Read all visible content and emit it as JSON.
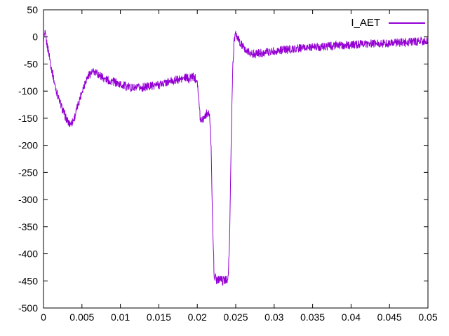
{
  "chart": {
    "background": "#ffffff",
    "axis_color": "#000000",
    "tick_font_size": 14
  },
  "chart_data": {
    "type": "line",
    "title": "",
    "xlabel": "",
    "ylabel": "",
    "xlim": [
      0,
      0.05
    ],
    "ylim": [
      -500,
      50
    ],
    "grid": false,
    "legend_position": "top-right",
    "xticks": [
      0,
      0.005,
      0.01,
      0.015,
      0.02,
      0.025,
      0.03,
      0.035,
      0.04,
      0.045,
      0.05
    ],
    "xtick_labels": [
      "0",
      "0.005",
      "0.01",
      "0.015",
      "0.02",
      "0.025",
      "0.03",
      "0.035",
      "0.04",
      "0.045",
      "0.05"
    ],
    "yticks": [
      50,
      0,
      -50,
      -100,
      -150,
      -200,
      -250,
      -300,
      -350,
      -400,
      -450,
      -500
    ],
    "ytick_labels": [
      "50",
      "0",
      "-50",
      "-100",
      "-150",
      "-200",
      "-250",
      "-300",
      "-350",
      "-400",
      "-450",
      "-500"
    ],
    "series": [
      {
        "name": "I_AET",
        "color": "#9400d3",
        "noise_amplitude": 8,
        "points": [
          [
            0,
            -3
          ],
          [
            0.0002,
            5
          ],
          [
            0.0004,
            -10
          ],
          [
            0.0007,
            -30
          ],
          [
            0.001,
            -55
          ],
          [
            0.0015,
            -90
          ],
          [
            0.002,
            -115
          ],
          [
            0.0025,
            -135
          ],
          [
            0.003,
            -152
          ],
          [
            0.0033,
            -160
          ],
          [
            0.0037,
            -158
          ],
          [
            0.004,
            -150
          ],
          [
            0.0045,
            -125
          ],
          [
            0.005,
            -100
          ],
          [
            0.0055,
            -80
          ],
          [
            0.006,
            -68
          ],
          [
            0.0065,
            -65
          ],
          [
            0.007,
            -68
          ],
          [
            0.0075,
            -72
          ],
          [
            0.008,
            -78
          ],
          [
            0.009,
            -82
          ],
          [
            0.01,
            -88
          ],
          [
            0.011,
            -92
          ],
          [
            0.012,
            -95
          ],
          [
            0.013,
            -93
          ],
          [
            0.014,
            -90
          ],
          [
            0.015,
            -88
          ],
          [
            0.016,
            -84
          ],
          [
            0.017,
            -80
          ],
          [
            0.018,
            -78
          ],
          [
            0.0185,
            -75
          ],
          [
            0.019,
            -78
          ],
          [
            0.0193,
            -72
          ],
          [
            0.0196,
            -75
          ],
          [
            0.02,
            -78
          ],
          [
            0.0202,
            -120
          ],
          [
            0.0204,
            -152
          ],
          [
            0.0208,
            -150
          ],
          [
            0.021,
            -145
          ],
          [
            0.0213,
            -140
          ],
          [
            0.0216,
            -145
          ],
          [
            0.0218,
            -200
          ],
          [
            0.022,
            -350
          ],
          [
            0.0222,
            -440
          ],
          [
            0.0225,
            -448
          ],
          [
            0.023,
            -445
          ],
          [
            0.0233,
            -450
          ],
          [
            0.0237,
            -448
          ],
          [
            0.024,
            -445
          ],
          [
            0.0242,
            -380
          ],
          [
            0.0244,
            -200
          ],
          [
            0.0246,
            -60
          ],
          [
            0.0248,
            -5
          ],
          [
            0.025,
            3
          ],
          [
            0.0252,
            0
          ],
          [
            0.0255,
            -10
          ],
          [
            0.026,
            -20
          ],
          [
            0.0265,
            -27
          ],
          [
            0.027,
            -30
          ],
          [
            0.0275,
            -32
          ],
          [
            0.028,
            -30
          ],
          [
            0.029,
            -28
          ],
          [
            0.03,
            -26
          ],
          [
            0.031,
            -24
          ],
          [
            0.032,
            -23
          ],
          [
            0.033,
            -21
          ],
          [
            0.034,
            -20
          ],
          [
            0.035,
            -19
          ],
          [
            0.036,
            -18
          ],
          [
            0.037,
            -17
          ],
          [
            0.038,
            -16
          ],
          [
            0.04,
            -15
          ],
          [
            0.042,
            -13
          ],
          [
            0.044,
            -12
          ],
          [
            0.046,
            -11
          ],
          [
            0.048,
            -9
          ],
          [
            0.05,
            -8
          ]
        ]
      }
    ]
  }
}
